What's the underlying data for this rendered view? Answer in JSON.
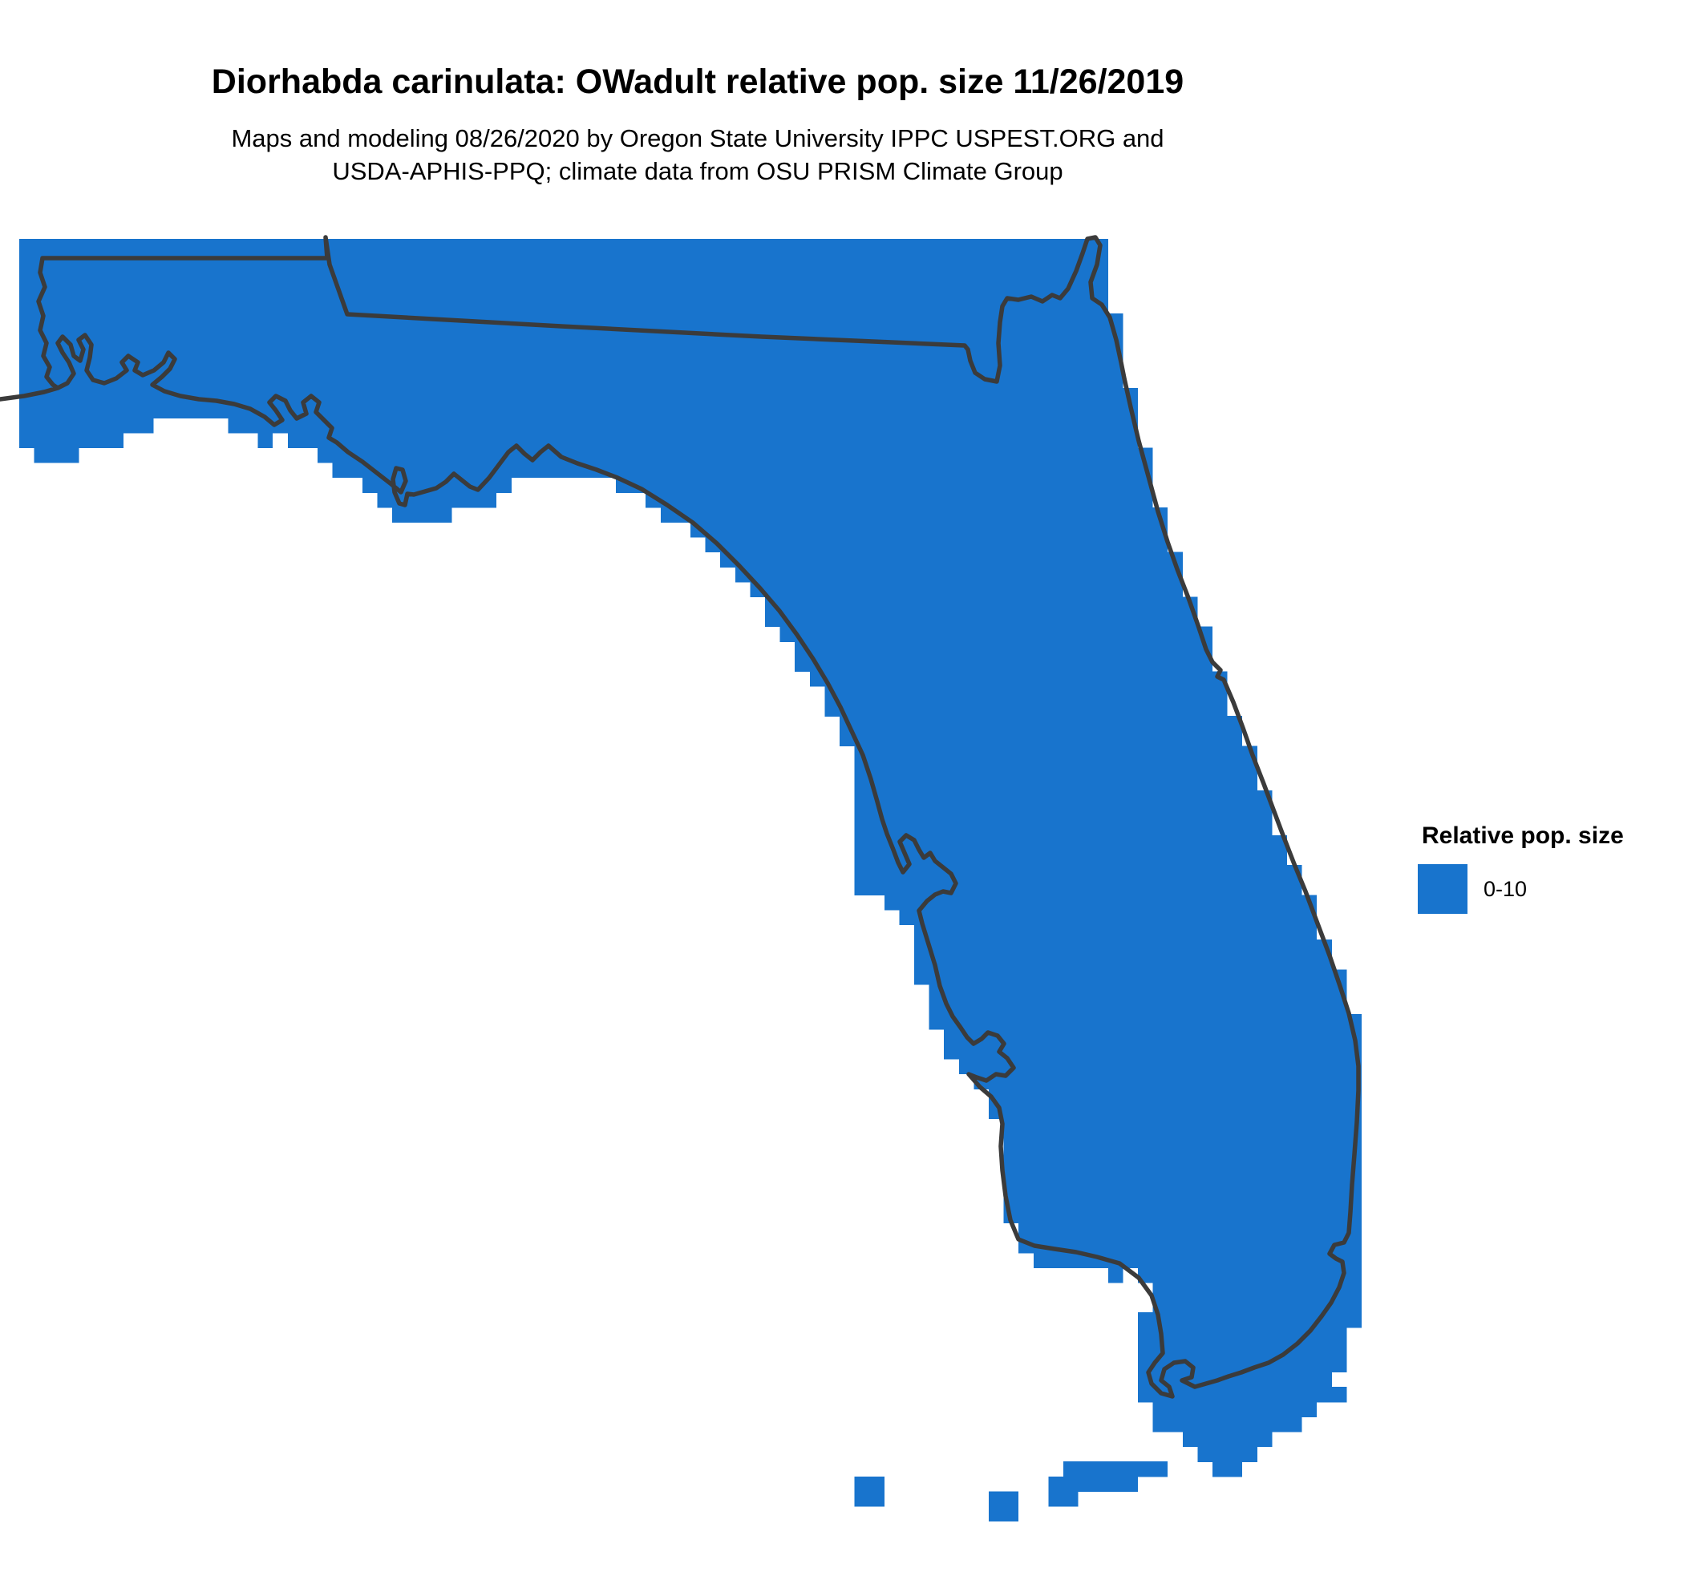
{
  "header": {
    "title": "Diorhabda carinulata: OWadult relative pop. size 11/26/2019",
    "subtitle_line1": "Maps and modeling 08/26/2020 by Oregon State University IPPC USPEST.ORG and",
    "subtitle_line2": "USDA-APHIS-PPQ; climate data from OSU PRISM Climate Group"
  },
  "legend": {
    "title": "Relative pop. size",
    "items": [
      {
        "label": "0-10",
        "color": "#1874CD"
      }
    ]
  },
  "map": {
    "fill_color": "#1874CD",
    "outline_color": "#3B3B3B",
    "background_color": "#FFFFFF"
  }
}
